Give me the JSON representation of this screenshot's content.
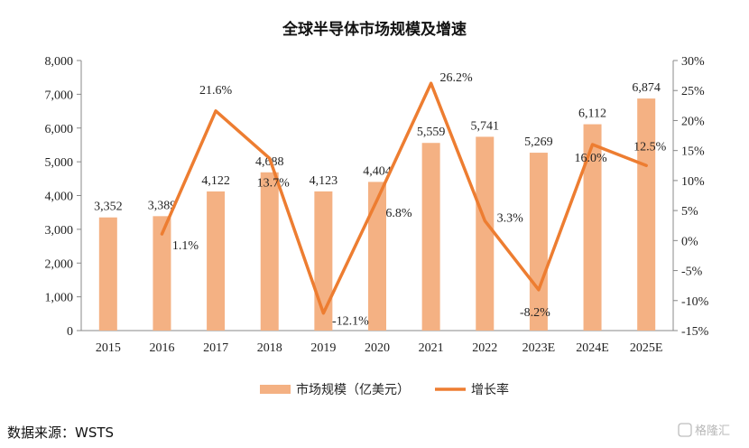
{
  "chart_data": {
    "type": "bar+line",
    "title": "全球半导体市场规模及增速",
    "categories": [
      "2015",
      "2016",
      "2017",
      "2018",
      "2019",
      "2020",
      "2021",
      "2022",
      "2023E",
      "2024E",
      "2025E"
    ],
    "series": [
      {
        "name": "市场规模（亿美元）",
        "kind": "bar",
        "axis": "left",
        "color": "#f4b183",
        "values": [
          3352,
          3389,
          4122,
          4688,
          4123,
          4404,
          5559,
          5741,
          5269,
          6112,
          6874
        ],
        "labels": [
          "3,352",
          "3,389",
          "4,122",
          "4,688",
          "4,123",
          "4,404",
          "5,559",
          "5,741",
          "5,269",
          "6,112",
          "6,874"
        ]
      },
      {
        "name": "增长率",
        "kind": "line",
        "axis": "right",
        "color": "#ed7d31",
        "values": [
          null,
          1.1,
          21.6,
          13.7,
          -12.1,
          6.8,
          26.2,
          3.3,
          -8.2,
          16.0,
          12.5
        ],
        "labels": [
          "",
          "1.1%",
          "21.6%",
          "13.7%",
          "-12.1%",
          "6.8%",
          "26.2%",
          "3.3%",
          "-8.2%",
          "16.0%",
          "12.5%"
        ]
      }
    ],
    "y_left": {
      "min": 0,
      "max": 8000,
      "ticks": [
        0,
        1000,
        2000,
        3000,
        4000,
        5000,
        6000,
        7000,
        8000
      ],
      "tick_labels": [
        "0",
        "1,000",
        "2,000",
        "3,000",
        "4,000",
        "5,000",
        "6,000",
        "7,000",
        "8,000"
      ]
    },
    "y_right": {
      "min": -15,
      "max": 30,
      "ticks": [
        -15,
        -10,
        -5,
        0,
        5,
        10,
        15,
        20,
        25,
        30
      ],
      "tick_labels": [
        "-15%",
        "-10%",
        "-5%",
        "0%",
        "5%",
        "10%",
        "15%",
        "20%",
        "25%",
        "30%"
      ]
    },
    "grid": false,
    "legend_position": "bottom"
  },
  "source_note": "数据来源：WSTS",
  "watermark": "格隆汇"
}
